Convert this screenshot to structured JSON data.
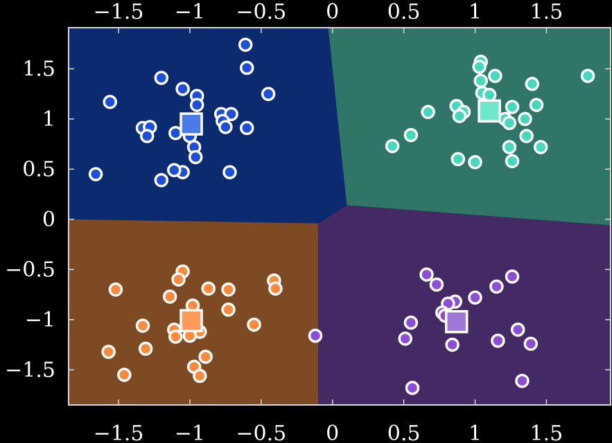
{
  "chart_data": {
    "type": "scatter",
    "title": "",
    "xlabel": "",
    "ylabel": "",
    "xlim": [
      -1.85,
      1.95
    ],
    "ylim": [
      -1.85,
      1.91
    ],
    "grid": false,
    "x_ticks": [
      -1.5,
      -1,
      -0.5,
      0,
      0.5,
      1,
      1.5
    ],
    "x_tick_labels": [
      "−1.5",
      "−1",
      "−0.5",
      "0",
      "0.5",
      "1",
      "1.5"
    ],
    "y_ticks": [
      -1.5,
      -1,
      -0.5,
      0,
      0.5,
      1,
      1.5
    ],
    "y_tick_labels": [
      "−1.5",
      "−1",
      "−0.5",
      "0",
      "0.5",
      "1",
      "1.5"
    ],
    "regions": [
      {
        "name": "",
        "color": "#0b2a6f",
        "polygon": [
          [
            -1.85,
            1.91
          ],
          [
            -0.03,
            1.91
          ],
          [
            0.1,
            0.14
          ],
          [
            -0.1,
            -0.04
          ],
          [
            -1.85,
            0.0
          ]
        ]
      },
      {
        "name": "",
        "color": "#2f7668",
        "polygon": [
          [
            -0.03,
            1.91
          ],
          [
            1.95,
            1.91
          ],
          [
            1.95,
            -0.06
          ],
          [
            0.1,
            0.14
          ]
        ]
      },
      {
        "name": "",
        "color": "#7e4a24",
        "polygon": [
          [
            -1.85,
            0.0
          ],
          [
            -0.1,
            -0.04
          ],
          [
            -0.1,
            -1.85
          ],
          [
            -1.85,
            -1.85
          ]
        ]
      },
      {
        "name": "",
        "color": "#432a65",
        "polygon": [
          [
            -0.1,
            -0.04
          ],
          [
            0.1,
            0.14
          ],
          [
            1.95,
            -0.06
          ],
          [
            1.95,
            -1.85
          ],
          [
            -0.1,
            -1.85
          ]
        ]
      }
    ],
    "series": [
      {
        "name": "",
        "color": "#1f4fd8",
        "center": [
          -0.99,
          0.95
        ],
        "center_color": "#4a7be8",
        "points": [
          [
            -0.61,
            1.74
          ],
          [
            -0.6,
            1.51
          ],
          [
            -1.2,
            1.41
          ],
          [
            -1.05,
            1.3
          ],
          [
            -0.45,
            1.25
          ],
          [
            -1.56,
            1.17
          ],
          [
            -0.95,
            1.23
          ],
          [
            -0.95,
            1.14
          ],
          [
            -0.78,
            1.05
          ],
          [
            -0.71,
            1.05
          ],
          [
            -0.77,
            0.98
          ],
          [
            -1.33,
            0.91
          ],
          [
            -1.28,
            0.92
          ],
          [
            -1.3,
            0.83
          ],
          [
            -1.1,
            0.86
          ],
          [
            -0.75,
            0.92
          ],
          [
            -0.6,
            0.91
          ],
          [
            -1.0,
            0.83
          ],
          [
            -0.97,
            0.72
          ],
          [
            -0.96,
            0.62
          ],
          [
            -1.05,
            0.47
          ],
          [
            -1.11,
            0.49
          ],
          [
            -0.72,
            0.47
          ],
          [
            -1.66,
            0.45
          ],
          [
            -1.2,
            0.39
          ]
        ]
      },
      {
        "name": "",
        "color": "#45d8bb",
        "center": [
          1.1,
          1.08
        ],
        "center_color": "#6fe7cc",
        "points": [
          [
            1.04,
            1.57
          ],
          [
            1.03,
            1.52
          ],
          [
            1.14,
            1.43
          ],
          [
            1.79,
            1.43
          ],
          [
            1.04,
            1.38
          ],
          [
            1.4,
            1.35
          ],
          [
            1.05,
            1.26
          ],
          [
            1.1,
            1.24
          ],
          [
            1.43,
            1.14
          ],
          [
            0.87,
            1.13
          ],
          [
            1.26,
            1.12
          ],
          [
            0.67,
            1.07
          ],
          [
            0.92,
            1.07
          ],
          [
            0.89,
            1.03
          ],
          [
            1.21,
            1.0
          ],
          [
            1.35,
            1.0
          ],
          [
            1.24,
            0.96
          ],
          [
            0.55,
            0.84
          ],
          [
            1.36,
            0.83
          ],
          [
            0.42,
            0.73
          ],
          [
            1.24,
            0.72
          ],
          [
            1.46,
            0.72
          ],
          [
            0.88,
            0.6
          ],
          [
            1.0,
            0.57
          ],
          [
            1.26,
            0.58
          ]
        ]
      },
      {
        "name": "",
        "color": "#ff8a3d",
        "center": [
          -0.99,
          -1.01
        ],
        "center_color": "#ff9a5a",
        "points": [
          [
            -1.05,
            -0.52
          ],
          [
            -1.08,
            -0.6
          ],
          [
            -0.41,
            -0.61
          ],
          [
            -0.4,
            -0.69
          ],
          [
            -1.52,
            -0.7
          ],
          [
            -0.87,
            -0.69
          ],
          [
            -0.73,
            -0.7
          ],
          [
            -1.14,
            -0.77
          ],
          [
            -0.98,
            -0.86
          ],
          [
            -0.73,
            -0.9
          ],
          [
            -1.33,
            -1.06
          ],
          [
            -0.55,
            -1.05
          ],
          [
            -1.11,
            -1.1
          ],
          [
            -1.1,
            -1.17
          ],
          [
            -0.93,
            -1.12
          ],
          [
            -1.0,
            -1.16
          ],
          [
            -1.31,
            -1.29
          ],
          [
            -1.57,
            -1.32
          ],
          [
            -0.89,
            -1.37
          ],
          [
            -0.97,
            -1.47
          ],
          [
            -1.46,
            -1.55
          ],
          [
            -0.93,
            -1.56
          ]
        ]
      },
      {
        "name": "",
        "color": "#8b4fd6",
        "center": [
          0.87,
          -1.02
        ],
        "center_color": "#a077d8",
        "points": [
          [
            0.66,
            -0.55
          ],
          [
            0.73,
            -0.65
          ],
          [
            1.26,
            -0.57
          ],
          [
            1.15,
            -0.67
          ],
          [
            0.86,
            -0.82
          ],
          [
            1.0,
            -0.78
          ],
          [
            0.81,
            -0.84
          ],
          [
            0.77,
            -0.93
          ],
          [
            0.79,
            -0.96
          ],
          [
            0.55,
            -1.03
          ],
          [
            1.3,
            -1.1
          ],
          [
            -0.12,
            -1.16
          ],
          [
            0.51,
            -1.19
          ],
          [
            1.16,
            -1.21
          ],
          [
            0.84,
            -1.25
          ],
          [
            1.39,
            -1.24
          ],
          [
            1.33,
            -1.61
          ],
          [
            0.56,
            -1.68
          ]
        ]
      }
    ]
  }
}
